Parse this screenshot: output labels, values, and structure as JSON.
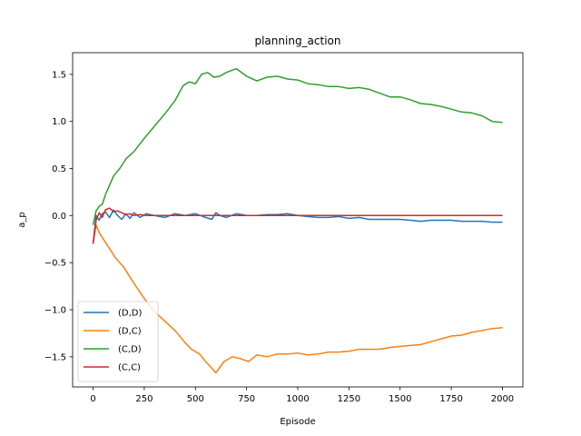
{
  "chart_data": {
    "type": "line",
    "title": "planning_action",
    "xlabel": "Episode",
    "ylabel": "a_p",
    "xlim": [
      -100,
      2100
    ],
    "ylim": [
      -1.82,
      1.73
    ],
    "xticks": [
      0,
      250,
      500,
      750,
      1000,
      1250,
      1500,
      1750,
      2000
    ],
    "xtick_labels": [
      "0",
      "250",
      "500",
      "750",
      "1000",
      "1250",
      "1500",
      "1750",
      "2000"
    ],
    "yticks": [
      -1.5,
      -1.0,
      -0.5,
      0.0,
      0.5,
      1.0,
      1.5
    ],
    "ytick_labels": [
      "−1.5",
      "−1.0",
      "−0.5",
      "0.0",
      "0.5",
      "1.0",
      "1.5"
    ],
    "grid": false,
    "legend_position": "lower-left",
    "series": [
      {
        "name": "(D,D)",
        "color": "#1f77b4",
        "x": [
          0,
          15,
          30,
          45,
          60,
          80,
          100,
          120,
          140,
          160,
          180,
          200,
          230,
          260,
          300,
          350,
          400,
          450,
          500,
          550,
          580,
          600,
          620,
          650,
          700,
          750,
          800,
          850,
          900,
          950,
          1000,
          1050,
          1100,
          1150,
          1200,
          1250,
          1300,
          1350,
          1400,
          1450,
          1500,
          1550,
          1600,
          1650,
          1700,
          1750,
          1800,
          1850,
          1900,
          1950,
          2000
        ],
        "y": [
          -0.3,
          0.0,
          -0.05,
          0.02,
          0.04,
          -0.02,
          0.06,
          0.0,
          -0.04,
          0.02,
          -0.03,
          0.03,
          -0.02,
          0.02,
          0.0,
          -0.02,
          0.02,
          0.0,
          0.02,
          -0.02,
          -0.04,
          0.03,
          0.0,
          -0.02,
          0.02,
          0.0,
          0.0,
          0.01,
          0.01,
          0.02,
          0.0,
          -0.01,
          -0.02,
          -0.02,
          -0.01,
          -0.03,
          -0.02,
          -0.04,
          -0.04,
          -0.04,
          -0.04,
          -0.05,
          -0.06,
          -0.05,
          -0.05,
          -0.05,
          -0.06,
          -0.06,
          -0.06,
          -0.07,
          -0.07
        ]
      },
      {
        "name": "(D,C)",
        "color": "#ff7f0e",
        "x": [
          0,
          15,
          30,
          50,
          80,
          110,
          150,
          200,
          250,
          300,
          350,
          400,
          450,
          480,
          520,
          550,
          580,
          600,
          640,
          680,
          720,
          760,
          800,
          850,
          900,
          950,
          1000,
          1050,
          1100,
          1150,
          1200,
          1250,
          1300,
          1350,
          1400,
          1450,
          1500,
          1550,
          1600,
          1650,
          1700,
          1750,
          1800,
          1850,
          1900,
          1950,
          2000
        ],
        "y": [
          -0.3,
          -0.1,
          -0.18,
          -0.25,
          -0.35,
          -0.45,
          -0.55,
          -0.72,
          -0.88,
          -1.02,
          -1.12,
          -1.22,
          -1.35,
          -1.42,
          -1.47,
          -1.55,
          -1.62,
          -1.67,
          -1.55,
          -1.5,
          -1.52,
          -1.55,
          -1.48,
          -1.5,
          -1.47,
          -1.47,
          -1.46,
          -1.48,
          -1.47,
          -1.45,
          -1.45,
          -1.44,
          -1.42,
          -1.42,
          -1.42,
          -1.4,
          -1.39,
          -1.38,
          -1.37,
          -1.34,
          -1.31,
          -1.28,
          -1.27,
          -1.24,
          -1.22,
          -1.2,
          -1.19
        ]
      },
      {
        "name": "(C,D)",
        "color": "#2ca02c",
        "x": [
          0,
          15,
          30,
          45,
          60,
          80,
          100,
          130,
          160,
          200,
          250,
          300,
          350,
          400,
          440,
          470,
          500,
          530,
          560,
          590,
          620,
          650,
          700,
          750,
          800,
          850,
          900,
          950,
          1000,
          1050,
          1100,
          1150,
          1200,
          1250,
          1300,
          1350,
          1400,
          1450,
          1500,
          1550,
          1600,
          1650,
          1700,
          1750,
          1800,
          1850,
          1900,
          1950,
          2000
        ],
        "y": [
          -0.1,
          0.05,
          0.1,
          0.12,
          0.22,
          0.32,
          0.42,
          0.5,
          0.6,
          0.68,
          0.82,
          0.95,
          1.08,
          1.22,
          1.38,
          1.42,
          1.4,
          1.5,
          1.52,
          1.47,
          1.48,
          1.52,
          1.56,
          1.48,
          1.43,
          1.47,
          1.48,
          1.45,
          1.44,
          1.4,
          1.39,
          1.37,
          1.37,
          1.35,
          1.36,
          1.34,
          1.3,
          1.26,
          1.26,
          1.23,
          1.19,
          1.18,
          1.16,
          1.13,
          1.1,
          1.09,
          1.06,
          1.0,
          0.99
        ]
      },
      {
        "name": "(C,C)",
        "color": "#d62728",
        "x": [
          0,
          15,
          30,
          45,
          60,
          80,
          100,
          120,
          140,
          160,
          180,
          200,
          230,
          260,
          300,
          400,
          500,
          700,
          1000,
          1500,
          2000
        ],
        "y": [
          -0.3,
          -0.05,
          0.03,
          -0.02,
          0.06,
          0.08,
          0.04,
          0.05,
          0.03,
          0.01,
          0.02,
          0.0,
          0.01,
          0.0,
          0.0,
          0.0,
          0.0,
          0.0,
          0.0,
          0.0,
          0.0
        ]
      }
    ]
  }
}
